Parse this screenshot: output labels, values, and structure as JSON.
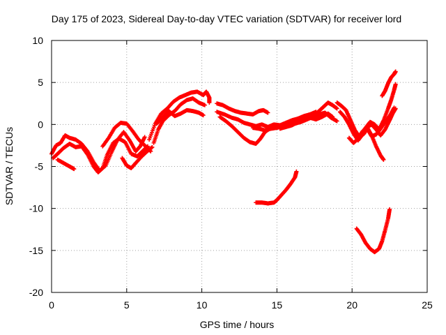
{
  "chart_data": {
    "type": "scatter",
    "title": "Day 175 of 2023, Sidereal Day-to-day VTEC variation (SDTVAR) for receiver lord",
    "xlabel": "GPS time / hours",
    "ylabel": "SDTVAR / TECUs",
    "xlim": [
      0,
      25
    ],
    "ylim": [
      -20,
      10
    ],
    "xticks": [
      0,
      5,
      10,
      15,
      20,
      25
    ],
    "yticks": [
      -20,
      -15,
      -10,
      -5,
      0,
      5,
      10
    ],
    "grid": true,
    "marker": "+",
    "color": "#ff0000",
    "series": [
      {
        "name": "track-1",
        "points": [
          [
            0,
            -3.5
          ],
          [
            0.3,
            -2.5
          ],
          [
            0.6,
            -2.2
          ],
          [
            0.9,
            -1.3
          ],
          [
            1.2,
            -1.6
          ],
          [
            1.6,
            -1.8
          ],
          [
            2.0,
            -2.3
          ],
          [
            2.4,
            -3.2
          ],
          [
            2.8,
            -4.5
          ],
          [
            3.2,
            -5.5
          ],
          [
            3.6,
            -4.9
          ],
          [
            4.0,
            -3.3
          ],
          [
            4.4,
            -1.8
          ],
          [
            4.8,
            -0.9
          ],
          [
            5.2,
            -1.9
          ],
          [
            5.6,
            -3.2
          ],
          [
            5.9,
            -2.6
          ],
          [
            6.2,
            -1.5
          ]
        ]
      },
      {
        "name": "track-2",
        "points": [
          [
            0.1,
            -4.0
          ],
          [
            0.4,
            -3.5
          ],
          [
            0.8,
            -2.8
          ],
          [
            1.2,
            -2.3
          ],
          [
            1.6,
            -2.7
          ],
          [
            2.0,
            -2.6
          ],
          [
            2.4,
            -3.6
          ],
          [
            2.8,
            -5.0
          ],
          [
            3.1,
            -5.7
          ],
          [
            3.4,
            -5.2
          ],
          [
            3.7,
            -3.6
          ],
          [
            4.1,
            -2.2
          ],
          [
            4.5,
            -1.7
          ],
          [
            4.9,
            -2.1
          ],
          [
            5.3,
            -3.5
          ],
          [
            5.7,
            -3.8
          ],
          [
            6.1,
            -3.1
          ],
          [
            6.4,
            -2.6
          ]
        ]
      },
      {
        "name": "track-3",
        "points": [
          [
            0.4,
            -4.2
          ],
          [
            0.8,
            -4.6
          ],
          [
            1.2,
            -5.0
          ],
          [
            1.5,
            -5.3
          ]
        ]
      },
      {
        "name": "track-4",
        "points": [
          [
            3.4,
            -2.6
          ],
          [
            3.8,
            -1.6
          ],
          [
            4.2,
            -0.4
          ],
          [
            4.6,
            0.2
          ],
          [
            5.0,
            0.1
          ],
          [
            5.4,
            -0.8
          ],
          [
            5.8,
            -1.8
          ],
          [
            6.2,
            -2.5
          ],
          [
            6.6,
            -3.2
          ]
        ]
      },
      {
        "name": "track-5",
        "points": [
          [
            4.7,
            -4.0
          ],
          [
            5.0,
            -4.9
          ],
          [
            5.3,
            -5.2
          ],
          [
            5.6,
            -4.6
          ],
          [
            6.0,
            -3.8
          ],
          [
            6.3,
            -3.3
          ],
          [
            6.7,
            -2.7
          ]
        ]
      },
      {
        "name": "track-6",
        "points": [
          [
            6.5,
            -1.8
          ],
          [
            6.9,
            0.1
          ],
          [
            7.3,
            1.3
          ],
          [
            7.7,
            1.9
          ],
          [
            8.1,
            2.7
          ],
          [
            8.5,
            3.2
          ],
          [
            8.9,
            3.5
          ],
          [
            9.3,
            3.8
          ],
          [
            9.7,
            3.9
          ],
          [
            10.1,
            3.5
          ],
          [
            10.3,
            3.9
          ],
          [
            10.5,
            3.2
          ],
          [
            10.5,
            2.6
          ]
        ]
      },
      {
        "name": "track-7",
        "points": [
          [
            6.8,
            -2.2
          ],
          [
            7.1,
            -0.6
          ],
          [
            7.4,
            0.4
          ],
          [
            7.8,
            1.1
          ],
          [
            8.2,
            1.6
          ],
          [
            8.6,
            2.4
          ],
          [
            9.0,
            2.9
          ],
          [
            9.4,
            3.1
          ],
          [
            9.8,
            2.6
          ],
          [
            10.2,
            2.3
          ]
        ]
      },
      {
        "name": "track-8",
        "points": [
          [
            7.0,
            0.1
          ],
          [
            7.4,
            0.9
          ],
          [
            7.8,
            1.6
          ],
          [
            8.2,
            1.0
          ],
          [
            8.6,
            1.3
          ],
          [
            9.0,
            1.7
          ],
          [
            9.4,
            1.6
          ],
          [
            9.8,
            1.4
          ],
          [
            10.1,
            1.1
          ]
        ]
      },
      {
        "name": "track-9",
        "points": [
          [
            11.0,
            2.5
          ],
          [
            11.4,
            2.3
          ],
          [
            11.8,
            1.9
          ],
          [
            12.2,
            1.6
          ],
          [
            12.6,
            1.4
          ],
          [
            13.0,
            1.3
          ],
          [
            13.4,
            1.2
          ],
          [
            13.8,
            1.6
          ],
          [
            14.1,
            1.7
          ],
          [
            14.4,
            1.4
          ]
        ]
      },
      {
        "name": "track-10",
        "points": [
          [
            11.0,
            1.5
          ],
          [
            11.5,
            1.2
          ],
          [
            12.0,
            0.8
          ],
          [
            12.4,
            0.6
          ],
          [
            12.8,
            0.2
          ],
          [
            13.2,
            0.0
          ],
          [
            13.6,
            -0.2
          ],
          [
            14.0,
            0.0
          ],
          [
            14.4,
            -0.3
          ],
          [
            14.8,
            0.0
          ],
          [
            15.2,
            -0.1
          ],
          [
            15.6,
            0.2
          ],
          [
            16.0,
            0.5
          ],
          [
            16.4,
            0.7
          ],
          [
            16.8,
            1.0
          ],
          [
            17.2,
            1.2
          ],
          [
            17.6,
            1.5
          ]
        ]
      },
      {
        "name": "track-11",
        "points": [
          [
            11.2,
            0.9
          ],
          [
            11.6,
            0.4
          ],
          [
            12.0,
            -0.2
          ],
          [
            12.4,
            -0.9
          ],
          [
            12.8,
            -1.6
          ],
          [
            13.2,
            -2.1
          ],
          [
            13.6,
            -2.3
          ],
          [
            13.9,
            -1.7
          ],
          [
            14.2,
            -0.9
          ],
          [
            14.6,
            -0.4
          ],
          [
            15.0,
            -0.2
          ]
        ]
      },
      {
        "name": "track-12",
        "points": [
          [
            13.4,
            -0.4
          ],
          [
            13.8,
            -0.5
          ],
          [
            14.2,
            -0.7
          ],
          [
            14.6,
            -0.5
          ],
          [
            15.0,
            -0.4
          ],
          [
            15.4,
            -0.2
          ],
          [
            15.8,
            0.0
          ],
          [
            16.2,
            0.1
          ],
          [
            16.6,
            0.3
          ],
          [
            17.0,
            0.6
          ],
          [
            17.4,
            0.9
          ],
          [
            17.8,
            1.2
          ],
          [
            18.2,
            1.4
          ],
          [
            18.6,
            0.8
          ],
          [
            19.0,
            0.4
          ]
        ]
      },
      {
        "name": "track-13",
        "points": [
          [
            15.2,
            -0.5
          ],
          [
            15.6,
            -0.3
          ],
          [
            16.0,
            -0.1
          ],
          [
            16.4,
            0.3
          ],
          [
            16.8,
            0.5
          ],
          [
            17.2,
            0.8
          ],
          [
            17.6,
            0.6
          ],
          [
            18.0,
            0.9
          ],
          [
            18.4,
            1.3
          ],
          [
            18.7,
            0.9
          ]
        ]
      },
      {
        "name": "track-14",
        "points": [
          [
            16.2,
            0.2
          ],
          [
            16.6,
            0.5
          ],
          [
            17.0,
            0.8
          ],
          [
            17.4,
            1.0
          ],
          [
            17.8,
            1.6
          ],
          [
            18.1,
            2.1
          ],
          [
            18.4,
            2.6
          ],
          [
            18.7,
            2.3
          ],
          [
            19.0,
            1.9
          ]
        ]
      },
      {
        "name": "track-15",
        "points": [
          [
            19.0,
            2.6
          ],
          [
            19.3,
            2.2
          ],
          [
            19.6,
            1.7
          ],
          [
            19.9,
            0.5
          ],
          [
            20.2,
            -0.7
          ],
          [
            20.5,
            -1.5
          ],
          [
            20.8,
            -1.1
          ],
          [
            21.1,
            -0.2
          ],
          [
            21.3,
            0.0
          ],
          [
            21.6,
            -0.6
          ],
          [
            21.9,
            -1.3
          ],
          [
            22.2,
            -0.6
          ],
          [
            22.5,
            0.5
          ],
          [
            22.7,
            1.3
          ],
          [
            22.9,
            1.9
          ]
        ]
      },
      {
        "name": "track-16",
        "points": [
          [
            19.2,
            1.5
          ],
          [
            19.5,
            0.9
          ],
          [
            19.8,
            0.0
          ],
          [
            20.1,
            -1.1
          ],
          [
            20.4,
            -1.9
          ],
          [
            20.7,
            -1.2
          ],
          [
            21.0,
            -0.3
          ],
          [
            21.3,
            -1.3
          ],
          [
            21.6,
            -2.6
          ],
          [
            21.9,
            -3.7
          ],
          [
            22.1,
            -4.2
          ]
        ]
      },
      {
        "name": "track-17",
        "points": [
          [
            19.8,
            -1.6
          ],
          [
            20.1,
            -2.2
          ],
          [
            20.4,
            -1.7
          ],
          [
            20.7,
            -0.8
          ],
          [
            21.0,
            -0.5
          ],
          [
            21.3,
            -1.4
          ],
          [
            21.6,
            -1.2
          ],
          [
            21.9,
            -0.5
          ],
          [
            22.2,
            0.3
          ],
          [
            22.5,
            1.0
          ],
          [
            22.8,
            2.0
          ]
        ]
      },
      {
        "name": "track-18",
        "points": [
          [
            20.6,
            -1.1
          ],
          [
            20.9,
            -0.4
          ],
          [
            21.2,
            0.3
          ],
          [
            21.5,
            0.0
          ],
          [
            21.8,
            -0.6
          ],
          [
            22.1,
            0.5
          ],
          [
            22.4,
            1.9
          ],
          [
            22.6,
            2.9
          ],
          [
            22.8,
            4.1
          ],
          [
            22.9,
            4.8
          ]
        ]
      },
      {
        "name": "track-19",
        "points": [
          [
            22.0,
            3.4
          ],
          [
            22.2,
            4.0
          ],
          [
            22.4,
            4.9
          ],
          [
            22.6,
            5.6
          ],
          [
            22.8,
            6.0
          ],
          [
            22.9,
            6.3
          ]
        ]
      },
      {
        "name": "track-20",
        "points": [
          [
            13.6,
            -9.3
          ],
          [
            14.0,
            -9.3
          ],
          [
            14.4,
            -9.4
          ],
          [
            14.8,
            -9.3
          ],
          [
            15.0,
            -9.0
          ],
          [
            15.3,
            -8.4
          ],
          [
            15.6,
            -7.8
          ],
          [
            15.9,
            -7.1
          ],
          [
            16.2,
            -6.3
          ],
          [
            16.3,
            -5.6
          ]
        ]
      },
      {
        "name": "track-21",
        "points": [
          [
            20.3,
            -12.4
          ],
          [
            20.6,
            -13.1
          ],
          [
            20.9,
            -14.1
          ],
          [
            21.2,
            -14.8
          ],
          [
            21.5,
            -15.2
          ],
          [
            21.8,
            -14.8
          ],
          [
            22.0,
            -13.9
          ],
          [
            22.2,
            -12.6
          ],
          [
            22.4,
            -11.2
          ],
          [
            22.5,
            -10.1
          ]
        ]
      }
    ]
  }
}
